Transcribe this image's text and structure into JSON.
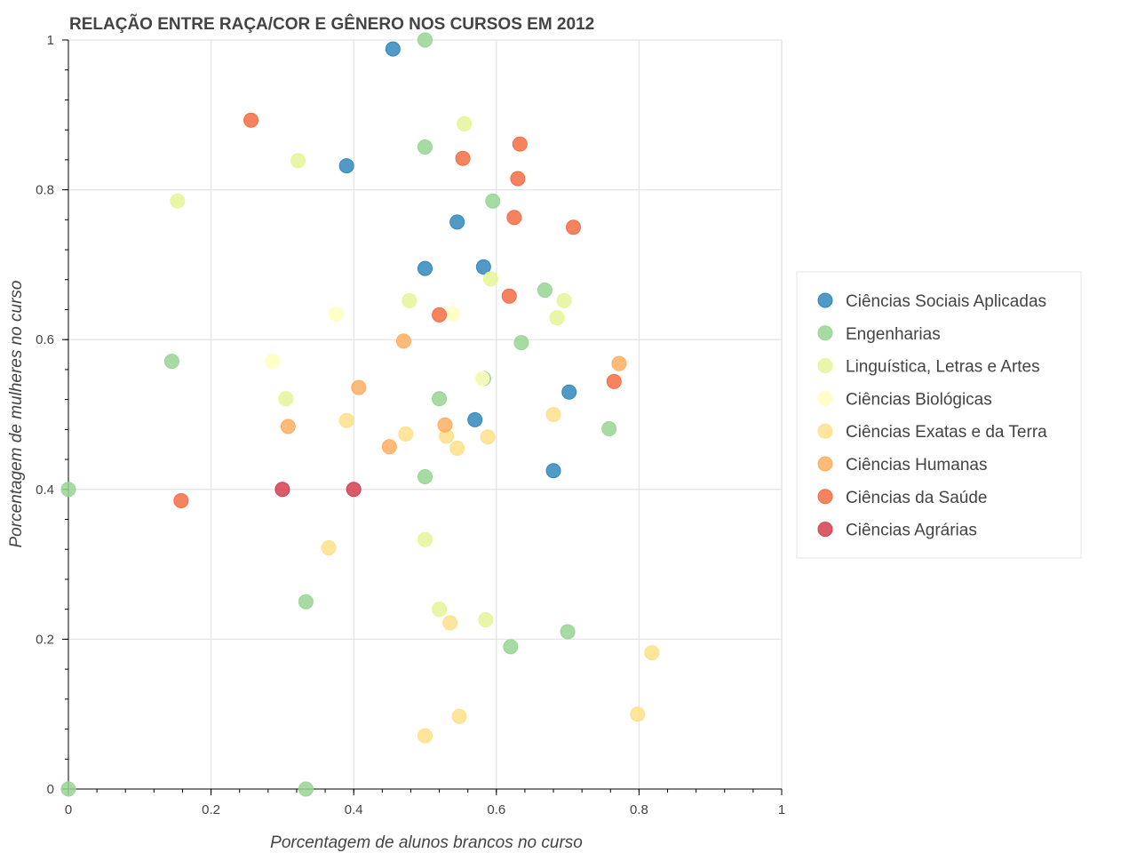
{
  "chart_data": {
    "type": "scatter",
    "title": "RELAÇÃO ENTRE RAÇA/COR E GÊNERO NOS CURSOS EM 2012",
    "xlabel": "Porcentagem de alunos brancos no curso",
    "ylabel": "Porcentagem de mulheres no curso",
    "xlim": [
      0,
      1
    ],
    "ylim": [
      0,
      1
    ],
    "x_ticks": [
      {
        "value": 0,
        "label": "0"
      },
      {
        "value": 0.2,
        "label": "0.2"
      },
      {
        "value": 0.4,
        "label": "0.4"
      },
      {
        "value": 0.6,
        "label": "0.6"
      },
      {
        "value": 0.8,
        "label": "0.8"
      },
      {
        "value": 1,
        "label": "1"
      }
    ],
    "y_ticks": [
      {
        "value": 0,
        "label": "0"
      },
      {
        "value": 0.2,
        "label": "0.2"
      },
      {
        "value": 0.4,
        "label": "0.4"
      },
      {
        "value": 0.6,
        "label": "0.6"
      },
      {
        "value": 0.8,
        "label": "0.8"
      },
      {
        "value": 1,
        "label": "1"
      }
    ],
    "grid": true,
    "legend_position": "right",
    "series": [
      {
        "name": "Ciências Sociais Aplicadas",
        "color": "#3288bd",
        "points": [
          [
            0.455,
            0.988
          ],
          [
            0.39,
            0.832
          ],
          [
            0.545,
            0.757
          ],
          [
            0.5,
            0.695
          ],
          [
            0.582,
            0.697
          ],
          [
            0.702,
            0.53
          ],
          [
            0.57,
            0.493
          ],
          [
            0.68,
            0.425
          ]
        ]
      },
      {
        "name": "Engenharias",
        "color": "#99d594",
        "points": [
          [
            0.5,
            1.0
          ],
          [
            0.5,
            0.857
          ],
          [
            0.595,
            0.785
          ],
          [
            0.668,
            0.666
          ],
          [
            0.635,
            0.596
          ],
          [
            0.145,
            0.571
          ],
          [
            0.582,
            0.548
          ],
          [
            0.52,
            0.521
          ],
          [
            0.758,
            0.481
          ],
          [
            0.0,
            0.4
          ],
          [
            0.5,
            0.417
          ],
          [
            0.333,
            0.25
          ],
          [
            0.7,
            0.21
          ],
          [
            0.62,
            0.19
          ],
          [
            0.0,
            0.0
          ],
          [
            0.333,
            0.0
          ]
        ]
      },
      {
        "name": "Linguística, Letras e Artes",
        "color": "#e6f598",
        "points": [
          [
            0.555,
            0.888
          ],
          [
            0.322,
            0.839
          ],
          [
            0.153,
            0.785
          ],
          [
            0.592,
            0.681
          ],
          [
            0.478,
            0.652
          ],
          [
            0.695,
            0.652
          ],
          [
            0.685,
            0.629
          ],
          [
            0.305,
            0.521
          ],
          [
            0.5,
            0.333
          ],
          [
            0.52,
            0.24
          ],
          [
            0.585,
            0.226
          ]
        ]
      },
      {
        "name": "Ciências Biológicas",
        "color": "#ffffbf",
        "points": [
          [
            0.375,
            0.634
          ],
          [
            0.538,
            0.634
          ],
          [
            0.286,
            0.571
          ],
          [
            0.58,
            0.548
          ]
        ]
      },
      {
        "name": "Ciências Exatas e da Terra",
        "color": "#fee08b",
        "points": [
          [
            0.39,
            0.492
          ],
          [
            0.473,
            0.474
          ],
          [
            0.53,
            0.471
          ],
          [
            0.588,
            0.47
          ],
          [
            0.545,
            0.455
          ],
          [
            0.68,
            0.5
          ],
          [
            0.365,
            0.322
          ],
          [
            0.535,
            0.222
          ],
          [
            0.818,
            0.182
          ],
          [
            0.548,
            0.097
          ],
          [
            0.798,
            0.1
          ],
          [
            0.5,
            0.071
          ]
        ]
      },
      {
        "name": "Ciências Humanas",
        "color": "#fdae61",
        "points": [
          [
            0.47,
            0.598
          ],
          [
            0.407,
            0.536
          ],
          [
            0.772,
            0.568
          ],
          [
            0.308,
            0.484
          ],
          [
            0.528,
            0.486
          ],
          [
            0.45,
            0.457
          ]
        ]
      },
      {
        "name": "Ciências da Saúde",
        "color": "#f46d43",
        "points": [
          [
            0.256,
            0.893
          ],
          [
            0.633,
            0.861
          ],
          [
            0.553,
            0.842
          ],
          [
            0.63,
            0.815
          ],
          [
            0.625,
            0.763
          ],
          [
            0.708,
            0.75
          ],
          [
            0.618,
            0.658
          ],
          [
            0.52,
            0.633
          ],
          [
            0.765,
            0.544
          ],
          [
            0.158,
            0.385
          ]
        ]
      },
      {
        "name": "Ciências Agrárias",
        "color": "#d53e4f",
        "points": [
          [
            0.3,
            0.4
          ],
          [
            0.4,
            0.4
          ]
        ]
      }
    ]
  }
}
